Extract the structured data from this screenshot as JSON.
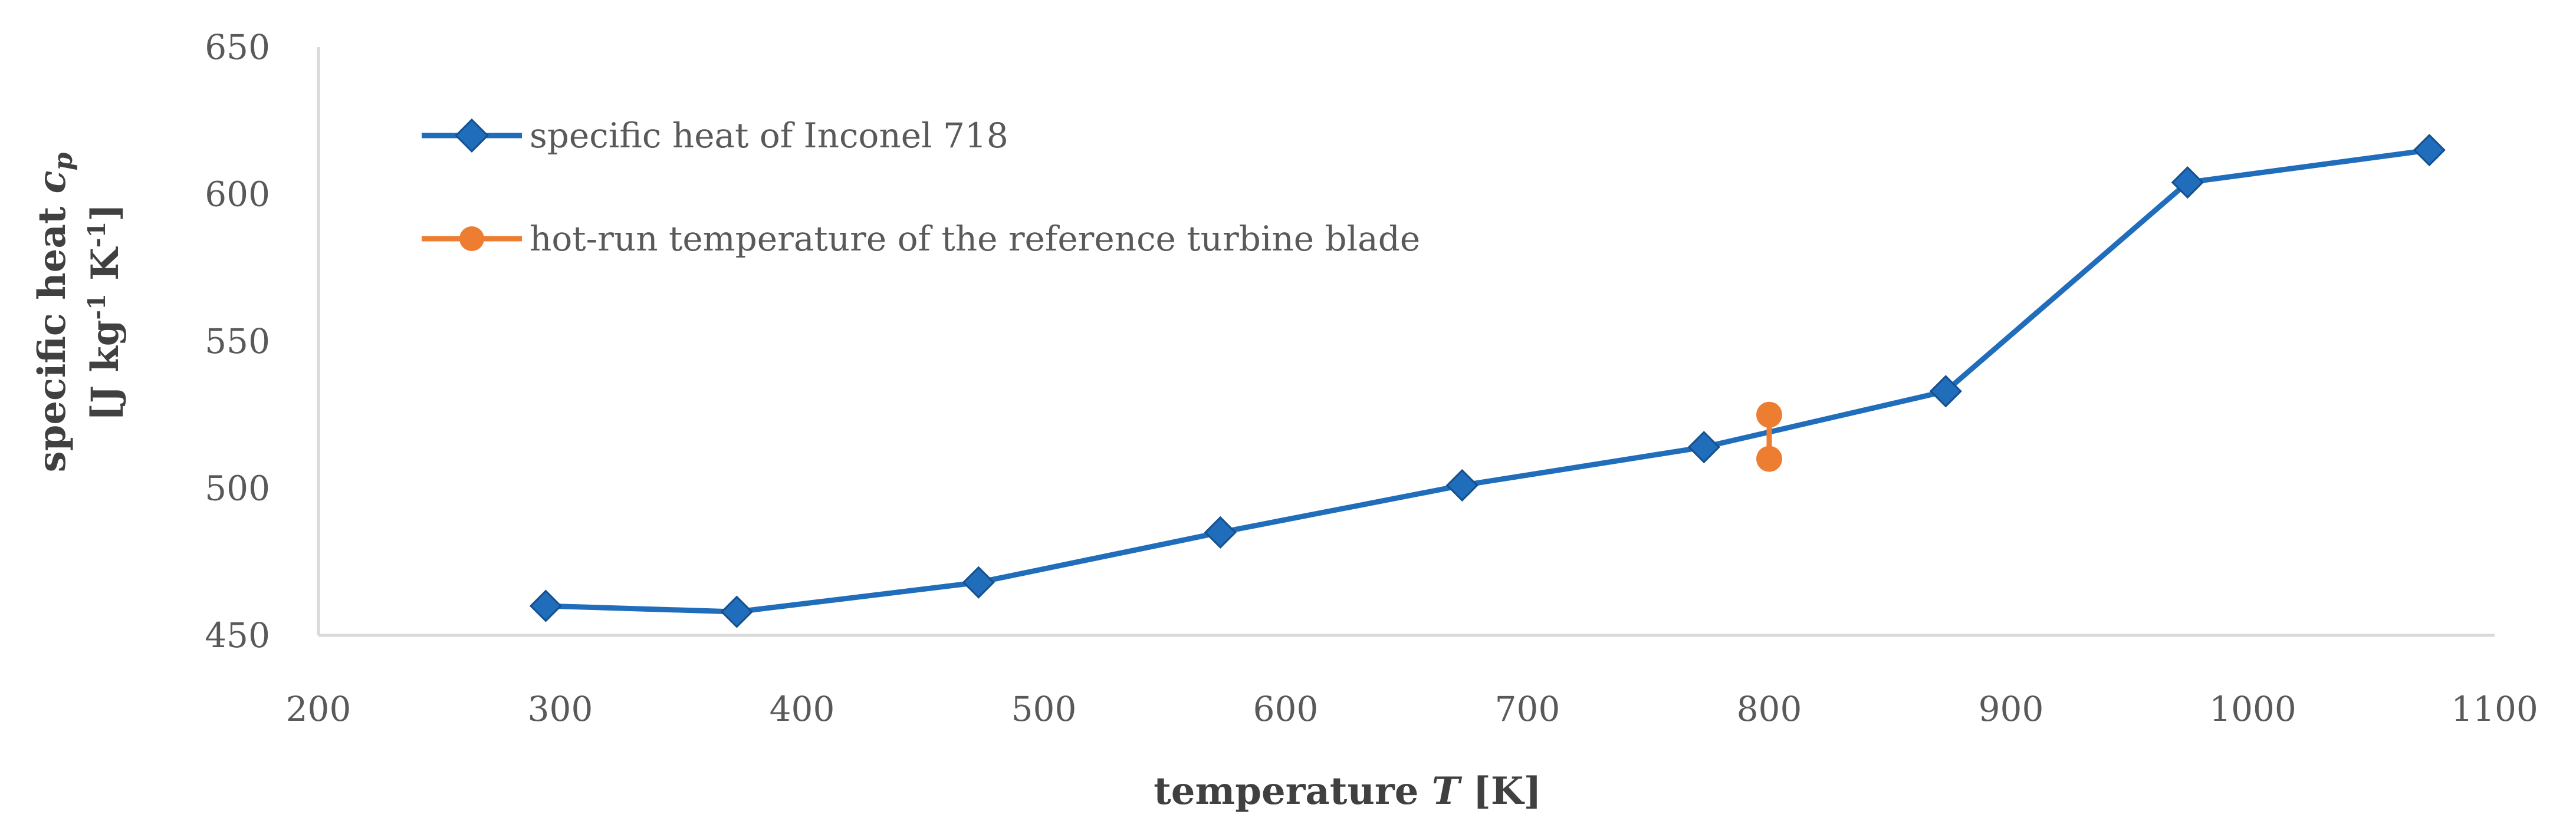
{
  "chart_data": {
    "type": "line",
    "xlabel": {
      "prefix": "temperature ",
      "symbol": "T",
      "suffix": " [K]"
    },
    "ylabel": {
      "line1_prefix": "specific heat ",
      "line1_symbol": "c",
      "line1_sub": "p",
      "line2_a": "[J kg",
      "line2_sup1": "-1",
      "line2_b": " K",
      "line2_sup2": "-1",
      "line2_c": "]"
    },
    "xlim": [
      200,
      1100
    ],
    "ylim": [
      450,
      650
    ],
    "xticks": [
      "200",
      "300",
      "400",
      "500",
      "600",
      "700",
      "800",
      "900",
      "1000",
      "1100"
    ],
    "yticks": [
      "450",
      "500",
      "550",
      "600",
      "650"
    ],
    "grid": false,
    "legend_position": "top-left",
    "series": [
      {
        "name": "specific heat of Inconel 718",
        "color": "#1f6dbb",
        "marker": "diamond",
        "x": [
          294,
          373,
          473,
          573,
          673,
          773,
          873,
          973,
          1073
        ],
        "y": [
          460,
          458,
          468,
          485,
          501,
          514,
          533,
          604,
          615
        ]
      },
      {
        "name": "hot-run temperature of the reference turbine blade",
        "color": "#ed7d31",
        "marker": "circle",
        "x": [
          800,
          800
        ],
        "y": [
          525,
          510
        ]
      }
    ]
  }
}
